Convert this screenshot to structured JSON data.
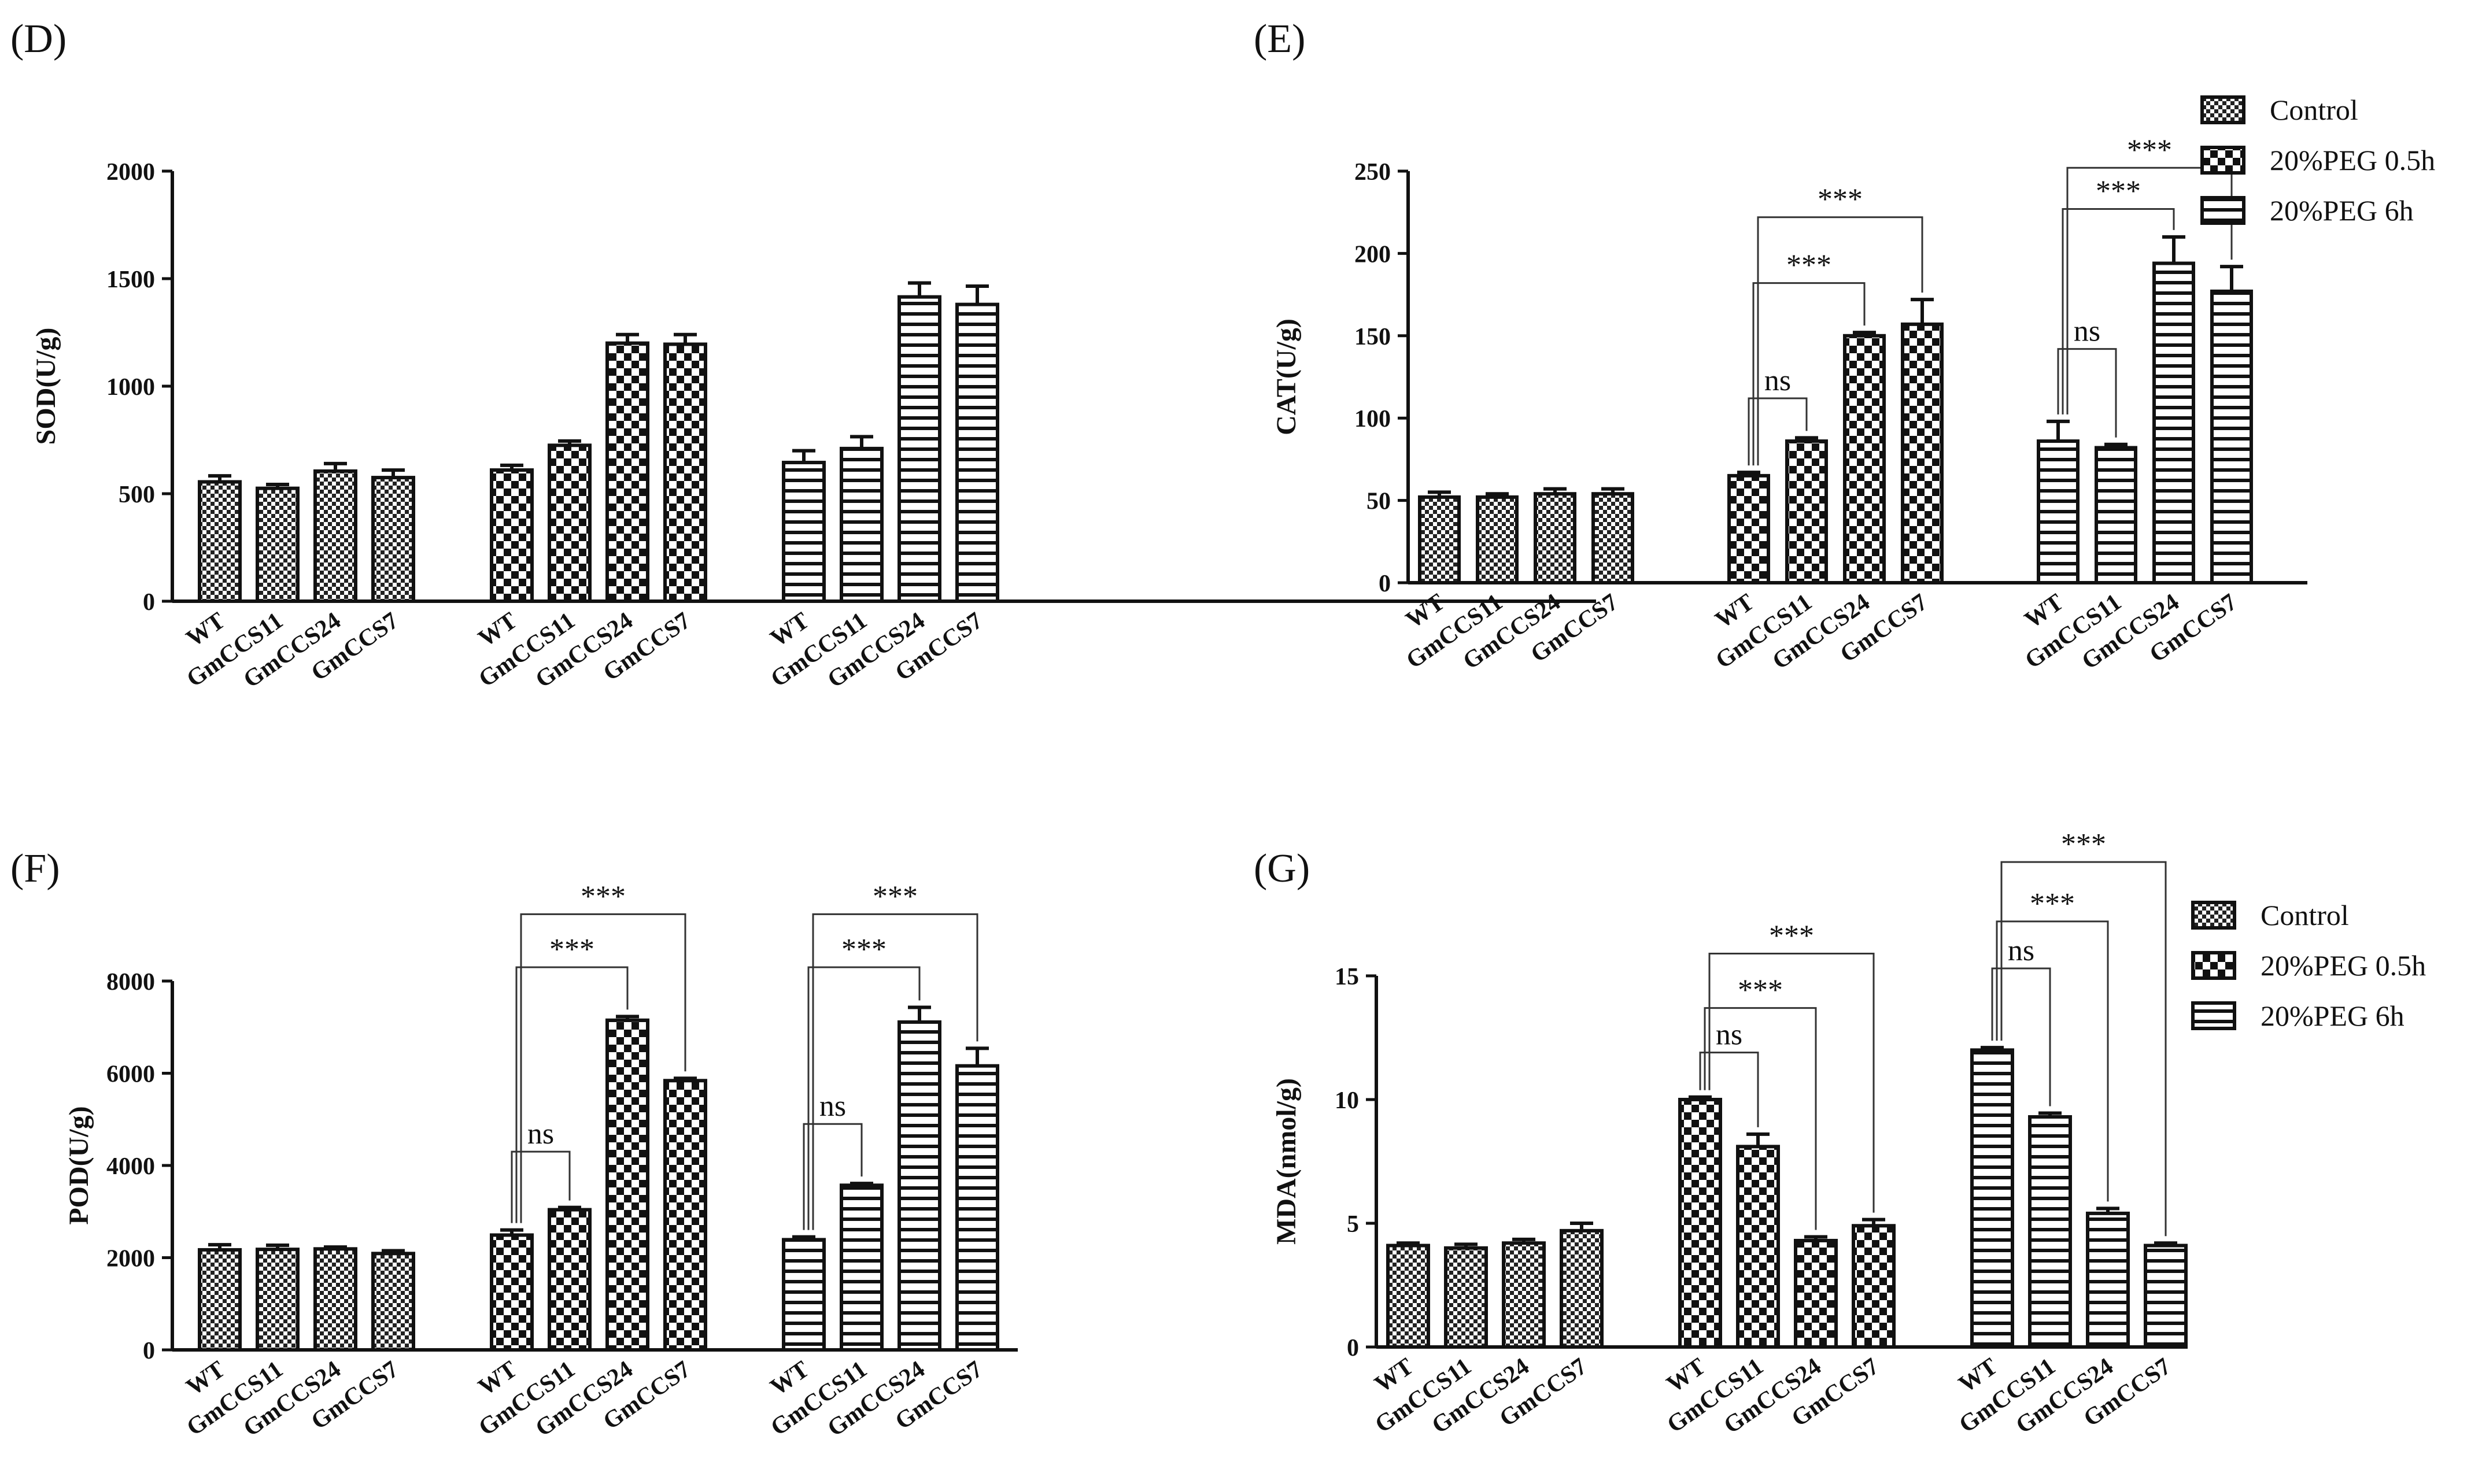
{
  "figure": {
    "colors": {
      "ink": "#111111",
      "bar_fill": "#ffffff",
      "background": "#ffffff"
    },
    "legend": {
      "entries": [
        "Control",
        "20%PEG 0.5h",
        "20%PEG 6h"
      ],
      "patterns": [
        "fine-checker",
        "coarse-checker",
        "horizontal-stripes"
      ]
    }
  },
  "chart_data": [
    {
      "panel": "(D)",
      "type": "bar",
      "ylabel": "SOD(U/g)",
      "ylim": [
        0,
        2000
      ],
      "yticks": [
        0,
        500,
        1000,
        1500,
        2000
      ],
      "categories": [
        "WT",
        "GmCCS11",
        "GmCCS24",
        "GmCCS7"
      ],
      "series": [
        {
          "name": "Control",
          "values": [
            555,
            525,
            605,
            575
          ],
          "errors": [
            28,
            18,
            35,
            35
          ]
        },
        {
          "name": "20%PEG 0.5h",
          "values": [
            610,
            725,
            1200,
            1195
          ],
          "errors": [
            22,
            20,
            40,
            45
          ]
        },
        {
          "name": "20%PEG 6h",
          "values": [
            645,
            710,
            1415,
            1380
          ],
          "errors": [
            55,
            55,
            65,
            85
          ]
        }
      ],
      "annotations": [],
      "show_legend": false
    },
    {
      "panel": "(E)",
      "type": "bar",
      "ylabel": "CAT(U/g)",
      "ylim": [
        0,
        250
      ],
      "yticks": [
        0,
        50,
        100,
        150,
        200,
        250
      ],
      "categories": [
        "WT",
        "GmCCS11",
        "GmCCS24",
        "GmCCS7"
      ],
      "series": [
        {
          "name": "Control",
          "values": [
            52,
            52,
            54,
            54
          ],
          "errors": [
            3,
            2,
            3,
            3
          ]
        },
        {
          "name": "20%PEG 0.5h",
          "values": [
            65,
            86,
            150,
            157
          ],
          "errors": [
            2,
            2,
            2,
            15
          ]
        },
        {
          "name": "20%PEG 6h",
          "values": [
            86,
            82,
            194,
            177
          ],
          "errors": [
            12,
            2,
            16,
            15
          ]
        }
      ],
      "annotations": [
        {
          "group": 1,
          "from": 0,
          "to": 1,
          "label": "ns",
          "y": 112
        },
        {
          "group": 1,
          "from": 0,
          "to": 2,
          "label": "***",
          "y": 182
        },
        {
          "group": 1,
          "from": 0,
          "to": 3,
          "label": "***",
          "y": 222
        },
        {
          "group": 2,
          "from": 0,
          "to": 1,
          "label": "ns",
          "y": 142
        },
        {
          "group": 2,
          "from": 0,
          "to": 2,
          "label": "***",
          "y": 227
        },
        {
          "group": 2,
          "from": 0,
          "to": 3,
          "label": "***",
          "y": 252
        }
      ],
      "show_legend": true
    },
    {
      "panel": "(F)",
      "type": "bar",
      "ylabel": "POD(U/g)",
      "ylim": [
        0,
        8000
      ],
      "yticks": [
        0,
        2000,
        4000,
        6000,
        8000
      ],
      "categories": [
        "WT",
        "GmCCS11",
        "GmCCS24",
        "GmCCS7"
      ],
      "series": [
        {
          "name": "Control",
          "values": [
            2170,
            2180,
            2190,
            2090
          ],
          "errors": [
            110,
            90,
            40,
            60
          ]
        },
        {
          "name": "20%PEG 0.5h",
          "values": [
            2490,
            3040,
            7150,
            5840
          ],
          "errors": [
            110,
            50,
            80,
            50
          ]
        },
        {
          "name": "20%PEG 6h",
          "values": [
            2390,
            3570,
            7110,
            6160
          ],
          "errors": [
            60,
            40,
            320,
            380
          ]
        }
      ],
      "annotations": [
        {
          "group": 1,
          "from": 0,
          "to": 1,
          "label": "ns",
          "y": 4300
        },
        {
          "group": 1,
          "from": 0,
          "to": 2,
          "label": "***",
          "y": 8300
        },
        {
          "group": 1,
          "from": 0,
          "to": 3,
          "label": "***",
          "y": 9450
        },
        {
          "group": 2,
          "from": 0,
          "to": 1,
          "label": "ns",
          "y": 4900
        },
        {
          "group": 2,
          "from": 0,
          "to": 2,
          "label": "***",
          "y": 8300
        },
        {
          "group": 2,
          "from": 0,
          "to": 3,
          "label": "***",
          "y": 9450
        }
      ],
      "show_legend": false
    },
    {
      "panel": "(G)",
      "type": "bar",
      "ylabel": "MDA(nmol/g)",
      "ylim": [
        0,
        15
      ],
      "yticks": [
        0,
        5,
        10,
        15
      ],
      "categories": [
        "WT",
        "GmCCS11",
        "GmCCS24",
        "GmCCS7"
      ],
      "series": [
        {
          "name": "Control",
          "values": [
            4.1,
            4.0,
            4.2,
            4.7
          ],
          "errors": [
            0.1,
            0.15,
            0.15,
            0.3
          ]
        },
        {
          "name": "20%PEG 0.5h",
          "values": [
            10.0,
            8.1,
            4.3,
            4.9
          ],
          "errors": [
            0.1,
            0.5,
            0.15,
            0.25
          ]
        },
        {
          "name": "20%PEG 6h",
          "values": [
            12.0,
            9.3,
            5.4,
            4.1
          ],
          "errors": [
            0.1,
            0.15,
            0.2,
            0.1
          ]
        }
      ],
      "annotations": [
        {
          "group": 1,
          "from": 0,
          "to": 1,
          "label": "ns",
          "y": 11.9
        },
        {
          "group": 1,
          "from": 0,
          "to": 2,
          "label": "***",
          "y": 13.7
        },
        {
          "group": 1,
          "from": 0,
          "to": 3,
          "label": "***",
          "y": 15.9
        },
        {
          "group": 2,
          "from": 0,
          "to": 1,
          "label": "ns",
          "y": 15.3
        },
        {
          "group": 2,
          "from": 0,
          "to": 2,
          "label": "***",
          "y": 17.2
        },
        {
          "group": 2,
          "from": 0,
          "to": 3,
          "label": "***",
          "y": 19.6
        }
      ],
      "show_legend": true
    }
  ]
}
